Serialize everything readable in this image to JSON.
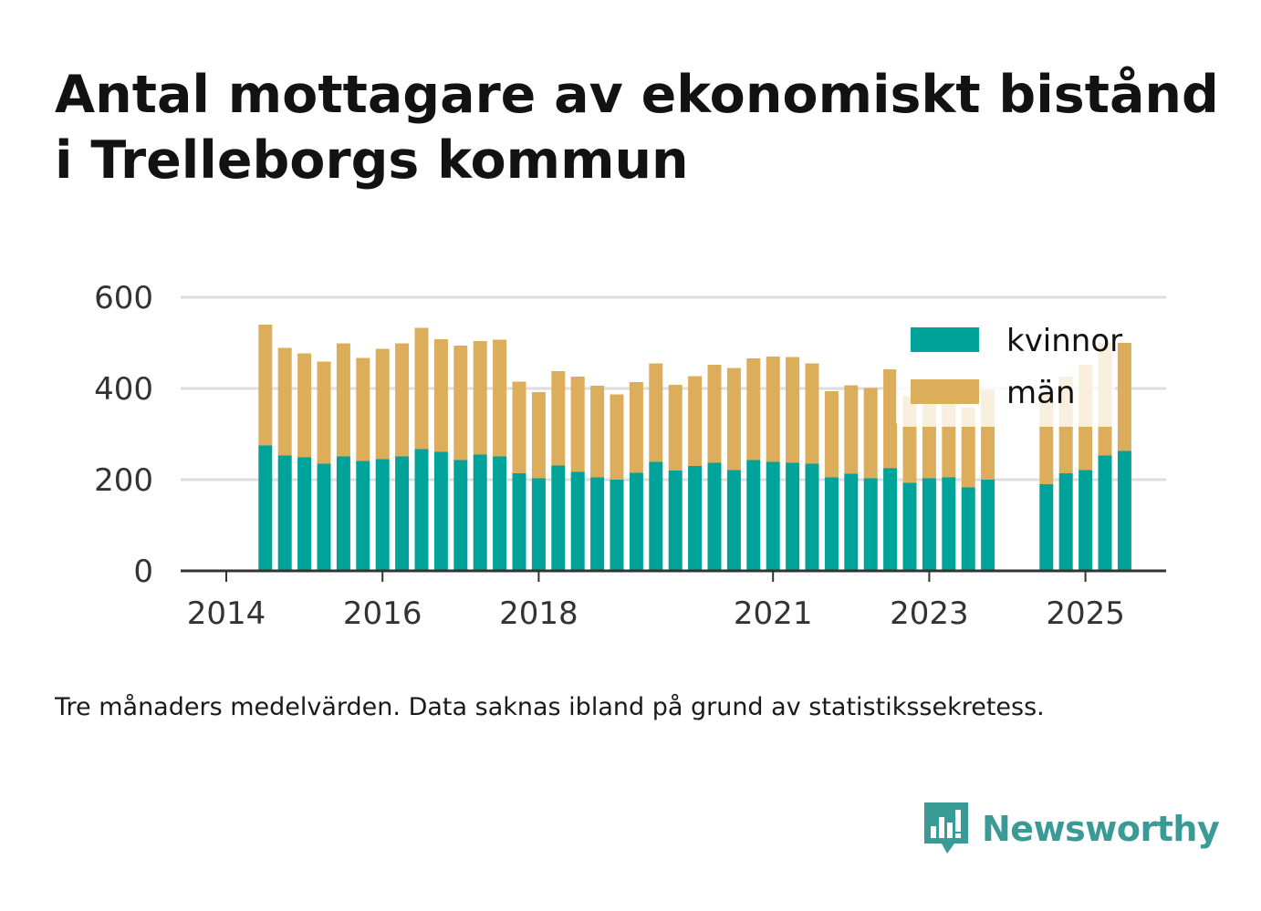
{
  "title_lines": [
    "Antal mottagare av ekonomiskt bistånd",
    "i Trelleborgs kommun"
  ],
  "caption": "Tre månaders medelvärden. Data saknas ibland på grund av statistikssekretess.",
  "brand": {
    "name": "Newsworthy",
    "icon": "bar-chart-speech-bubble-icon"
  },
  "colors": {
    "kvinnor": "#00a39a",
    "man": "#dcad5b",
    "grid": "#dddddd",
    "axis": "#333333",
    "brand": "#3a9a96"
  },
  "chart_data": {
    "type": "bar",
    "stacked": true,
    "title": "Antal mottagare av ekonomiskt bistånd i Trelleborgs kommun",
    "xlabel": "",
    "ylabel": "",
    "ylim": [
      0,
      600
    ],
    "yticks": [
      0,
      200,
      400,
      600
    ],
    "xticks": [
      "2014",
      "2016",
      "2018",
      "2021",
      "2023",
      "2025"
    ],
    "grid": true,
    "legend_position": "top-right",
    "x_unit": "quarter",
    "x": [
      "2014-Q2",
      "2014-Q3",
      "2014-Q4",
      "2015-Q1",
      "2015-Q2",
      "2015-Q3",
      "2015-Q4",
      "2016-Q1",
      "2016-Q2",
      "2016-Q3",
      "2016-Q4",
      "2017-Q1",
      "2017-Q2",
      "2017-Q3",
      "2017-Q4",
      "2018-Q1",
      "2018-Q2",
      "2018-Q3",
      "2018-Q4",
      "2019-Q1",
      "2019-Q2",
      "2019-Q3",
      "2019-Q4",
      "2020-Q1",
      "2020-Q2",
      "2020-Q3",
      "2020-Q4",
      "2021-Q1",
      "2021-Q2",
      "2021-Q3",
      "2021-Q4",
      "2022-Q1",
      "2022-Q2",
      "2022-Q3",
      "2022-Q4",
      "2023-Q1",
      "2023-Q2",
      "2023-Q3",
      "2023-Q4",
      "2024-Q1",
      "2024-Q2",
      "2024-Q3",
      "2024-Q4",
      "2025-Q1",
      "2025-Q2"
    ],
    "series": [
      {
        "name": "kvinnor",
        "values": [
          275,
          253,
          249,
          235,
          251,
          241,
          245,
          251,
          267,
          261,
          243,
          255,
          251,
          214,
          203,
          231,
          217,
          205,
          200,
          215,
          239,
          220,
          230,
          237,
          221,
          243,
          239,
          237,
          235,
          205,
          213,
          203,
          225,
          193,
          203,
          205,
          183,
          200,
          null,
          null,
          190,
          214,
          221,
          253,
          263
        ]
      },
      {
        "name": "män",
        "values": [
          265,
          236,
          228,
          224,
          248,
          226,
          242,
          248,
          266,
          247,
          251,
          249,
          256,
          201,
          189,
          207,
          209,
          201,
          187,
          199,
          216,
          188,
          197,
          215,
          224,
          223,
          231,
          232,
          220,
          189,
          194,
          198,
          217,
          190,
          180,
          178,
          175,
          197,
          null,
          null,
          203,
          212,
          231,
          247,
          237
        ]
      }
    ]
  }
}
